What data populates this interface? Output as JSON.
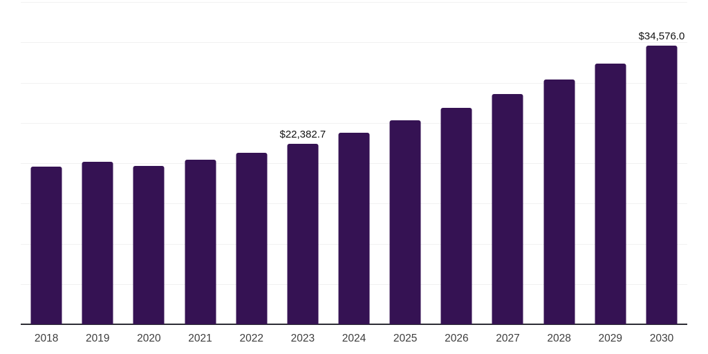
{
  "chart_data": {
    "type": "bar",
    "title": "",
    "xlabel": "",
    "ylabel": "",
    "categories": [
      "2018",
      "2019",
      "2020",
      "2021",
      "2022",
      "2023",
      "2024",
      "2025",
      "2026",
      "2027",
      "2028",
      "2029",
      "2030"
    ],
    "values": [
      19600,
      20150,
      19650,
      20400,
      21250,
      22382.7,
      23800,
      25300,
      26900,
      28600,
      30400,
      32400,
      34576.0
    ],
    "data_labels": {
      "2023": "$22,382.7",
      "2030": "$34,576.0"
    },
    "ylim": [
      0,
      40000
    ],
    "gridline_step": 5000,
    "grid": true,
    "legend_position": "none",
    "y_axis_tick_labels_visible": false,
    "colors": {
      "bar": "#351253",
      "gridline": "#f1f1f1",
      "axis_line": "#2b2b33",
      "x_tick_label": "#3d3d3d",
      "data_label": "#111111",
      "background": "#ffffff"
    }
  }
}
